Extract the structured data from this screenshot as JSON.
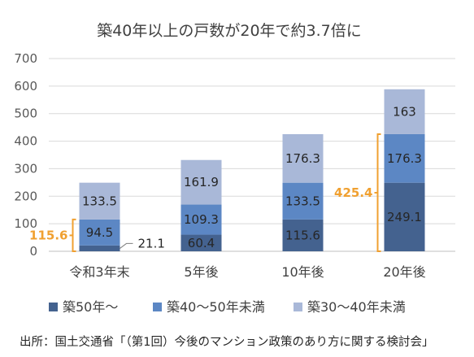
{
  "chart_data": {
    "type": "bar",
    "stacked": true,
    "title": "築40年以上の戸数が20年で約3.7倍に",
    "categories": [
      "令和3年末",
      "5年後",
      "10年後",
      "20年後"
    ],
    "ylim": [
      0,
      700
    ],
    "yticks": [
      0,
      100,
      200,
      300,
      400,
      500,
      600,
      700
    ],
    "grid": true,
    "legend_position": "bottom",
    "series": [
      {
        "name": "築50年～",
        "values": [
          21.1,
          60.4,
          115.6,
          249.1
        ],
        "color": "#44628f",
        "labels": [
          "",
          "60.4",
          "115.6",
          "249.1"
        ]
      },
      {
        "name": "築40～50年未満",
        "values": [
          94.5,
          109.3,
          133.5,
          176.3
        ],
        "color": "#5c87c4",
        "labels": [
          "94.5",
          "109.3",
          "133.5",
          "176.3"
        ]
      },
      {
        "name": "築30～40年未満",
        "values": [
          133.5,
          161.9,
          176.3,
          163
        ],
        "color": "#a9b8d8",
        "labels": [
          "133.5",
          "161.9",
          "176.3",
          "163"
        ]
      }
    ],
    "annotations": [
      {
        "text": "21.1",
        "category": 0,
        "kind": "pointer"
      },
      {
        "text": "115.6",
        "category": 0,
        "kind": "bracket",
        "from": 0,
        "to": 115.6,
        "side": "left",
        "color": "#f0a030"
      },
      {
        "text": "425.4",
        "category": 3,
        "kind": "bracket",
        "from": 0,
        "to": 425.4,
        "side": "left",
        "color": "#f0a030"
      }
    ]
  },
  "source": "出所：国土交通省「（第1回）今後のマンション政策のあり方に関する検討会」"
}
